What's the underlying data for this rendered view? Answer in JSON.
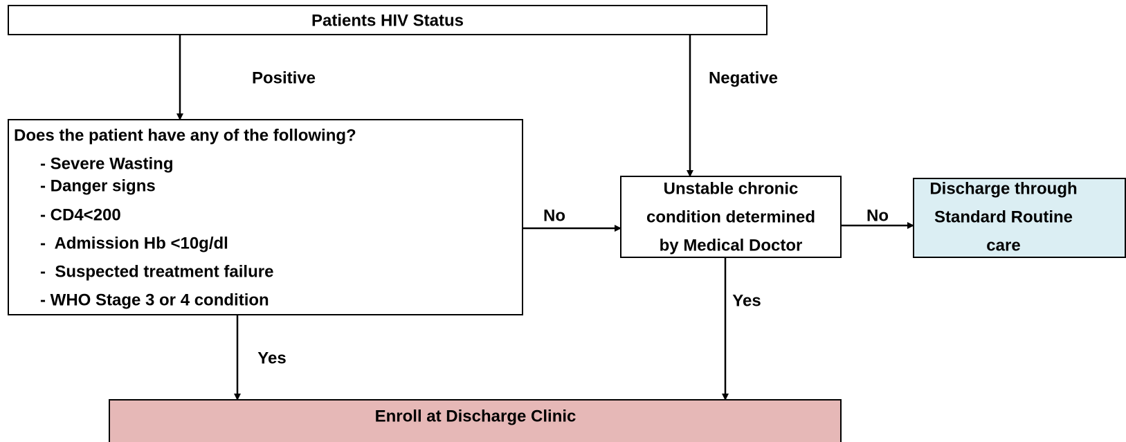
{
  "nodes": [
    {
      "label": "Patients HIV Status"
    },
    {
      "title": "Does the patient have any of the following?",
      "items": [
        "- Severe Wasting",
        "- Danger signs",
        "- CD4<200",
        "-  Admission Hb <10g/dl",
        "-  Suspected treatment failure",
        "- WHO Stage 3 or 4 condition"
      ]
    },
    {
      "lines": [
        "Unstable chronic",
        "condition determined",
        "by Medical Doctor"
      ]
    },
    {
      "lines": [
        "Discharge through",
        "Standard Routine",
        "care"
      ]
    },
    {
      "label": "Enroll at Discharge Clinic"
    }
  ],
  "edges": [
    {
      "label": "Positive"
    },
    {
      "label": "Negative"
    },
    {
      "label": "No"
    },
    {
      "label": "No"
    },
    {
      "label": "Yes"
    },
    {
      "label": "Yes"
    }
  ]
}
